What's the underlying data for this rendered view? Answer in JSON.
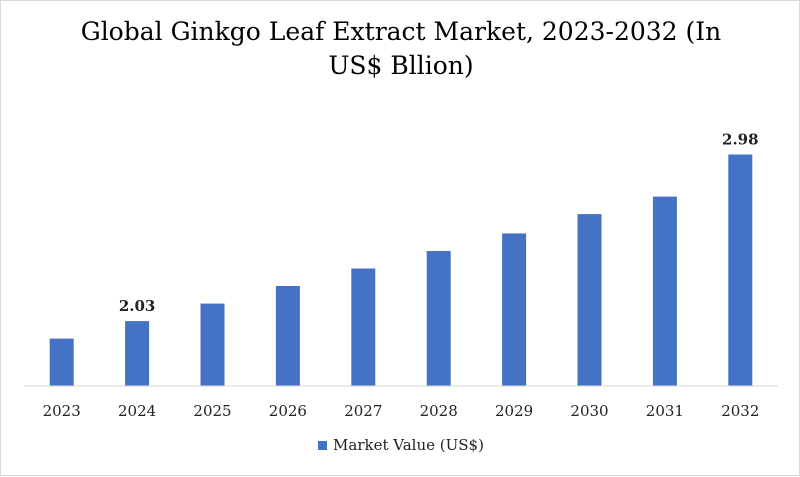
{
  "chart_data": {
    "type": "bar",
    "title": "Global Ginkgo Leaf Extract Market, 2023-2032 (In US$ Bllion)",
    "xlabel": "",
    "ylabel": "",
    "categories": [
      "2023",
      "2024",
      "2025",
      "2026",
      "2027",
      "2028",
      "2029",
      "2030",
      "2031",
      "2032"
    ],
    "series": [
      {
        "name": "Market Value (US$)",
        "values": [
          1.93,
          2.03,
          2.13,
          2.23,
          2.33,
          2.43,
          2.53,
          2.64,
          2.74,
          2.98
        ]
      }
    ],
    "data_labels": [
      {
        "index": 1,
        "text": "2.03"
      },
      {
        "index": 9,
        "text": "2.98"
      }
    ],
    "ylim": [
      1.66,
      3.0
    ],
    "y_axis_visible": false,
    "grid": false,
    "legend_position": "bottom",
    "colors": {
      "bar": "#4472C4",
      "axis": "#d9d9d9",
      "text": "#222222"
    }
  }
}
